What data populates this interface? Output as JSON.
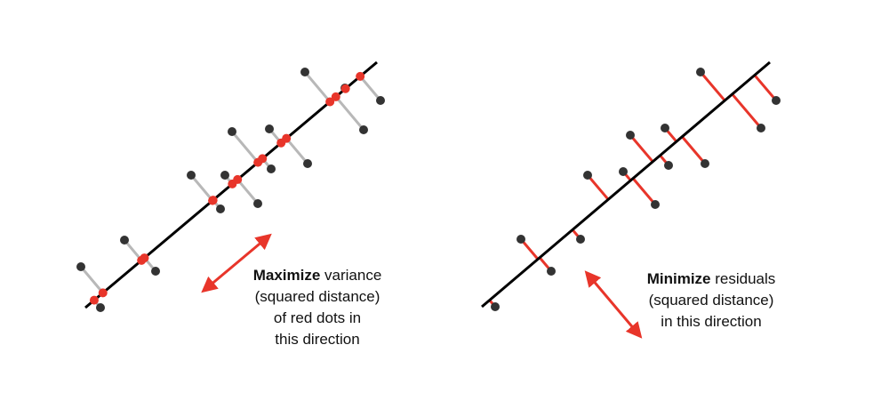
{
  "left_panel": {
    "caption": {
      "bold": "Maximize",
      "rest": " variance",
      "line2": "(squared distance)",
      "line3": "of red dots in",
      "line4": "this direction"
    }
  },
  "right_panel": {
    "caption": {
      "bold": "Minimize",
      "rest": " residuals",
      "line2": "(squared distance)",
      "line3": "in this direction"
    }
  },
  "colors": {
    "axis_line": "#000000",
    "data_point": "#333333",
    "projected_point": "#e8352a",
    "projection_segment": "#b8b8b8",
    "residual_segment": "#e8352a",
    "arrow": "#e8352a"
  }
}
